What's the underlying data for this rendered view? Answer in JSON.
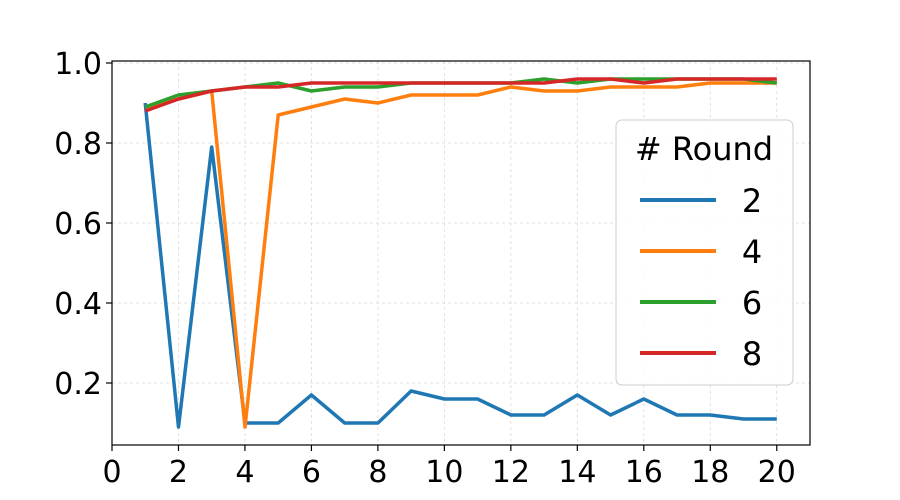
{
  "chart_data": {
    "type": "line",
    "title": "",
    "xlabel": "",
    "ylabel": "",
    "xlim": [
      0,
      21
    ],
    "ylim": [
      0.045,
      1.005
    ],
    "xticks": [
      0,
      2,
      4,
      6,
      8,
      10,
      12,
      14,
      16,
      18,
      20
    ],
    "yticks": [
      0.2,
      0.4,
      0.6,
      0.8,
      1.0
    ],
    "ytick_labels": [
      "0.2",
      "0.4",
      "0.6",
      "0.8",
      "1.0"
    ],
    "grid": true,
    "legend": {
      "title": "# Round",
      "placement": "right"
    },
    "x": [
      1,
      2,
      3,
      4,
      5,
      6,
      7,
      8,
      9,
      10,
      11,
      12,
      13,
      14,
      15,
      16,
      17,
      18,
      19,
      20
    ],
    "series": [
      {
        "name": "2",
        "color": "#1f77b4",
        "values": [
          0.9,
          0.09,
          0.79,
          0.1,
          0.1,
          0.17,
          0.1,
          0.1,
          0.18,
          0.16,
          0.16,
          0.12,
          0.12,
          0.17,
          0.12,
          0.16,
          0.12,
          0.12,
          0.11,
          0.11
        ]
      },
      {
        "name": "4",
        "color": "#ff7f0e",
        "values": [
          0.89,
          0.91,
          0.93,
          0.09,
          0.87,
          0.89,
          0.91,
          0.9,
          0.92,
          0.92,
          0.92,
          0.94,
          0.93,
          0.93,
          0.94,
          0.94,
          0.94,
          0.95,
          0.95,
          0.95
        ]
      },
      {
        "name": "6",
        "color": "#2ca02c",
        "values": [
          0.89,
          0.92,
          0.93,
          0.94,
          0.95,
          0.93,
          0.94,
          0.94,
          0.95,
          0.95,
          0.95,
          0.95,
          0.96,
          0.95,
          0.96,
          0.96,
          0.96,
          0.96,
          0.96,
          0.95
        ]
      },
      {
        "name": "8",
        "color": "#d62728",
        "values": [
          0.88,
          0.91,
          0.93,
          0.94,
          0.94,
          0.95,
          0.95,
          0.95,
          0.95,
          0.95,
          0.95,
          0.95,
          0.95,
          0.96,
          0.96,
          0.95,
          0.96,
          0.96,
          0.96,
          0.96
        ]
      }
    ]
  }
}
